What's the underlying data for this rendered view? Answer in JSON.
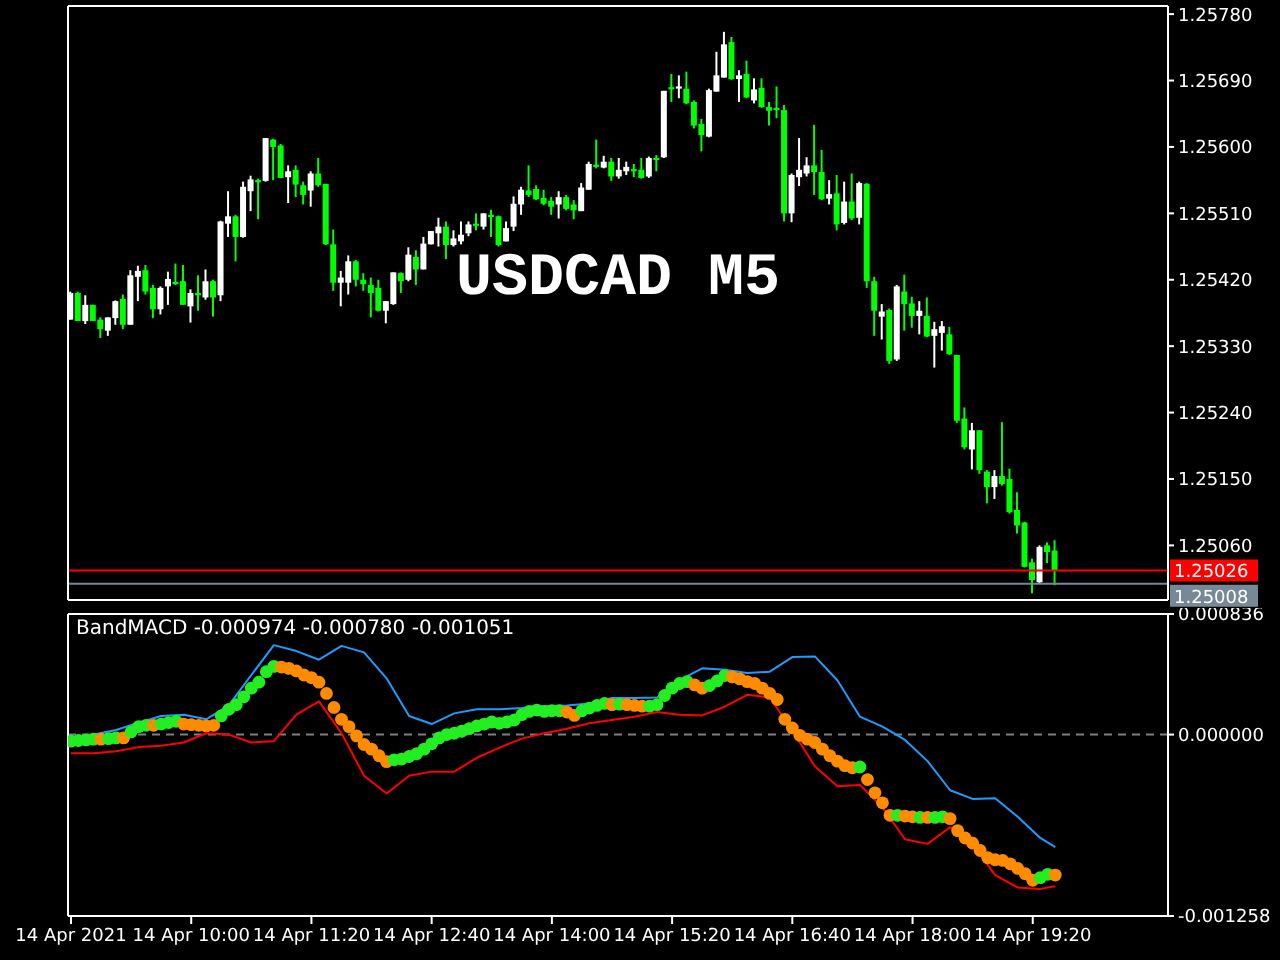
{
  "chart_data": [
    {
      "type": "candlestick",
      "title": "USDCAD M5",
      "tick_labels": "y",
      "xlim": [
        "2021-04-14T08:38",
        "2021-04-14T20:50"
      ],
      "ylim": [
        1.24986,
        1.25791
      ],
      "yticks": [
        {
          "value": 1.2506,
          "label": "1.25060"
        },
        {
          "value": 1.2515,
          "label": "1.25150"
        },
        {
          "value": 1.2524,
          "label": "1.25240"
        },
        {
          "value": 1.2533,
          "label": "1.25330"
        },
        {
          "value": 1.2542,
          "label": "1.25420"
        },
        {
          "value": 1.2551,
          "label": "1.25510"
        },
        {
          "value": 1.256,
          "label": "1.25600"
        },
        {
          "value": 1.2569,
          "label": "1.25690"
        },
        {
          "value": 1.2578,
          "label": "1.25780"
        }
      ],
      "ref_lines": [
        {
          "axis": "y",
          "value": 1.25026,
          "label": "1.25026",
          "color": "#ff0000"
        },
        {
          "axis": "y",
          "value": 1.25008,
          "label": "1.25008",
          "color": "#778899"
        }
      ],
      "x": [
        "2021-04-14T08:40",
        "2021-04-14T08:45",
        "2021-04-14T08:50",
        "2021-04-14T08:55",
        "2021-04-14T09:00",
        "2021-04-14T09:05",
        "2021-04-14T09:10",
        "2021-04-14T09:15",
        "2021-04-14T09:20",
        "2021-04-14T09:25",
        "2021-04-14T09:30",
        "2021-04-14T09:35",
        "2021-04-14T09:40",
        "2021-04-14T09:45",
        "2021-04-14T09:50",
        "2021-04-14T09:55",
        "2021-04-14T10:00",
        "2021-04-14T10:05",
        "2021-04-14T10:10",
        "2021-04-14T10:15",
        "2021-04-14T10:20",
        "2021-04-14T10:25",
        "2021-04-14T10:30",
        "2021-04-14T10:35",
        "2021-04-14T10:40",
        "2021-04-14T10:45",
        "2021-04-14T10:50",
        "2021-04-14T10:55",
        "2021-04-14T11:00",
        "2021-04-14T11:05",
        "2021-04-14T11:10",
        "2021-04-14T11:15",
        "2021-04-14T11:20",
        "2021-04-14T11:25",
        "2021-04-14T11:30",
        "2021-04-14T11:35",
        "2021-04-14T11:40",
        "2021-04-14T11:45",
        "2021-04-14T11:50",
        "2021-04-14T11:55",
        "2021-04-14T12:00",
        "2021-04-14T12:05",
        "2021-04-14T12:10",
        "2021-04-14T12:15",
        "2021-04-14T12:20",
        "2021-04-14T12:25",
        "2021-04-14T12:30",
        "2021-04-14T12:35",
        "2021-04-14T12:40",
        "2021-04-14T12:45",
        "2021-04-14T12:50",
        "2021-04-14T12:55",
        "2021-04-14T13:00",
        "2021-04-14T13:05",
        "2021-04-14T13:10",
        "2021-04-14T13:15",
        "2021-04-14T13:20",
        "2021-04-14T13:25",
        "2021-04-14T13:30",
        "2021-04-14T13:35",
        "2021-04-14T13:40",
        "2021-04-14T13:45",
        "2021-04-14T13:50",
        "2021-04-14T13:55",
        "2021-04-14T14:00",
        "2021-04-14T14:05",
        "2021-04-14T14:10",
        "2021-04-14T14:15",
        "2021-04-14T14:20",
        "2021-04-14T14:25",
        "2021-04-14T14:30",
        "2021-04-14T14:35",
        "2021-04-14T14:40",
        "2021-04-14T14:45",
        "2021-04-14T14:50",
        "2021-04-14T14:55",
        "2021-04-14T15:00",
        "2021-04-14T15:05",
        "2021-04-14T15:10",
        "2021-04-14T15:15",
        "2021-04-14T15:20",
        "2021-04-14T15:25",
        "2021-04-14T15:30",
        "2021-04-14T15:35",
        "2021-04-14T15:40",
        "2021-04-14T15:45",
        "2021-04-14T15:50",
        "2021-04-14T15:55",
        "2021-04-14T16:00",
        "2021-04-14T16:05",
        "2021-04-14T16:10",
        "2021-04-14T16:15",
        "2021-04-14T16:20",
        "2021-04-14T16:25",
        "2021-04-14T16:30",
        "2021-04-14T16:35",
        "2021-04-14T16:40",
        "2021-04-14T16:45",
        "2021-04-14T16:50",
        "2021-04-14T16:55",
        "2021-04-14T17:00",
        "2021-04-14T17:05",
        "2021-04-14T17:10",
        "2021-04-14T17:15",
        "2021-04-14T17:20",
        "2021-04-14T17:25",
        "2021-04-14T17:30",
        "2021-04-14T17:35",
        "2021-04-14T17:40",
        "2021-04-14T17:45",
        "2021-04-14T17:50",
        "2021-04-14T17:55",
        "2021-04-14T18:00",
        "2021-04-14T18:05",
        "2021-04-14T18:10",
        "2021-04-14T18:15",
        "2021-04-14T18:20",
        "2021-04-14T18:25",
        "2021-04-14T18:30",
        "2021-04-14T18:35",
        "2021-04-14T18:40",
        "2021-04-14T18:45",
        "2021-04-14T18:50",
        "2021-04-14T18:55",
        "2021-04-14T19:00",
        "2021-04-14T19:05",
        "2021-04-14T19:10",
        "2021-04-14T19:15",
        "2021-04-14T19:20",
        "2021-04-14T19:25",
        "2021-04-14T19:30",
        "2021-04-14T19:35"
      ],
      "ohlc": [
        [
          1.25366,
          1.25404,
          1.25366,
          1.25402
        ],
        [
          1.25402,
          1.25404,
          1.25364,
          1.25364
        ],
        [
          1.25364,
          1.25399,
          1.2536,
          1.25386
        ],
        [
          1.25386,
          1.25386,
          1.25364,
          1.25364
        ],
        [
          1.25366,
          1.25369,
          1.25341,
          1.25353
        ],
        [
          1.25351,
          1.25369,
          1.25344,
          1.25369
        ],
        [
          1.25368,
          1.25392,
          1.25359,
          1.25391
        ],
        [
          1.25394,
          1.254,
          1.25353,
          1.25359
        ],
        [
          1.25359,
          1.25433,
          1.25359,
          1.25426
        ],
        [
          1.25424,
          1.25439,
          1.25391,
          1.25432
        ],
        [
          1.25433,
          1.2544,
          1.254,
          1.25404
        ],
        [
          1.25409,
          1.25413,
          1.25368,
          1.2538
        ],
        [
          1.2538,
          1.25411,
          1.25373,
          1.25409
        ],
        [
          1.25411,
          1.25431,
          1.25386,
          1.25421
        ],
        [
          1.25417,
          1.25442,
          1.25413,
          1.25414
        ],
        [
          1.25418,
          1.2544,
          1.25386,
          1.25386
        ],
        [
          1.25384,
          1.25407,
          1.25362,
          1.25402
        ],
        [
          1.25402,
          1.25426,
          1.25378,
          1.25399
        ],
        [
          1.25396,
          1.25434,
          1.25393,
          1.25418
        ],
        [
          1.25418,
          1.2542,
          1.2537,
          1.25396
        ],
        [
          1.25399,
          1.255,
          1.25391,
          1.25499
        ],
        [
          1.25496,
          1.2554,
          1.25478,
          1.25506
        ],
        [
          1.25506,
          1.25508,
          1.25445,
          1.25478
        ],
        [
          1.25478,
          1.25553,
          1.25477,
          1.25546
        ],
        [
          1.2554,
          1.25561,
          1.25513,
          1.25556
        ],
        [
          1.25555,
          1.25557,
          1.25502,
          1.25552
        ],
        [
          1.25554,
          1.25612,
          1.25553,
          1.25612
        ],
        [
          1.2561,
          1.25611,
          1.25555,
          1.256
        ],
        [
          1.25602,
          1.25604,
          1.25558,
          1.25558
        ],
        [
          1.25559,
          1.25575,
          1.25524,
          1.25567
        ],
        [
          1.25569,
          1.25575,
          1.25532,
          1.25549
        ],
        [
          1.25548,
          1.25553,
          1.25522,
          1.25535
        ],
        [
          1.25541,
          1.25567,
          1.25519,
          1.25564
        ],
        [
          1.25564,
          1.25585,
          1.25546,
          1.25548
        ],
        [
          1.2555,
          1.2555,
          1.25467,
          1.25468
        ],
        [
          1.25468,
          1.25488,
          1.25405,
          1.25416
        ],
        [
          1.25416,
          1.25432,
          1.25384,
          1.25423
        ],
        [
          1.25416,
          1.25453,
          1.254,
          1.25445
        ],
        [
          1.25445,
          1.25447,
          1.25411,
          1.2542
        ],
        [
          1.2542,
          1.25429,
          1.25405,
          1.25414
        ],
        [
          1.25413,
          1.25423,
          1.25369,
          1.25402
        ],
        [
          1.25409,
          1.2542,
          1.25377,
          1.25378
        ],
        [
          1.25378,
          1.25391,
          1.25361,
          1.25391
        ],
        [
          1.25387,
          1.2543,
          1.25386,
          1.2543
        ],
        [
          1.25429,
          1.2543,
          1.25402,
          1.25418
        ],
        [
          1.2542,
          1.25464,
          1.25418,
          1.25454
        ],
        [
          1.25451,
          1.2546,
          1.25413,
          1.25434
        ],
        [
          1.25434,
          1.25478,
          1.25434,
          1.25469
        ],
        [
          1.25468,
          1.25486,
          1.25468,
          1.25486
        ],
        [
          1.25483,
          1.25504,
          1.25465,
          1.25492
        ],
        [
          1.25492,
          1.25499,
          1.25448,
          1.25467
        ],
        [
          1.25467,
          1.25487,
          1.25465,
          1.25476
        ],
        [
          1.25472,
          1.25499,
          1.25468,
          1.25481
        ],
        [
          1.25483,
          1.25499,
          1.25479,
          1.25495
        ],
        [
          1.25496,
          1.2551,
          1.25487,
          1.25493
        ],
        [
          1.25492,
          1.2551,
          1.25488,
          1.2551
        ],
        [
          1.25508,
          1.25515,
          1.25478,
          1.25505
        ],
        [
          1.25506,
          1.25507,
          1.25465,
          1.25467
        ],
        [
          1.25472,
          1.25499,
          1.25472,
          1.2549
        ],
        [
          1.25492,
          1.25533,
          1.25486,
          1.25523
        ],
        [
          1.25522,
          1.25546,
          1.25508,
          1.25542
        ],
        [
          1.25541,
          1.25575,
          1.25532,
          1.25535
        ],
        [
          1.25543,
          1.25548,
          1.25528,
          1.25529
        ],
        [
          1.25531,
          1.25542,
          1.25521,
          1.25523
        ],
        [
          1.25527,
          1.25532,
          1.25508,
          1.25519
        ],
        [
          1.25522,
          1.2554,
          1.25503,
          1.25532
        ],
        [
          1.25532,
          1.25535,
          1.25514,
          1.25516
        ],
        [
          1.25522,
          1.25528,
          1.25502,
          1.25514
        ],
        [
          1.25513,
          1.25551,
          1.25513,
          1.25545
        ],
        [
          1.25542,
          1.2558,
          1.25542,
          1.25577
        ],
        [
          1.25576,
          1.2561,
          1.25571,
          1.25573
        ],
        [
          1.25572,
          1.25588,
          1.25571,
          1.2558
        ],
        [
          1.2558,
          1.25585,
          1.25554,
          1.2556
        ],
        [
          1.2556,
          1.25585,
          1.25557,
          1.25569
        ],
        [
          1.25567,
          1.2558,
          1.25562,
          1.25573
        ],
        [
          1.2557,
          1.25577,
          1.25559,
          1.25567
        ],
        [
          1.25569,
          1.25585,
          1.25557,
          1.25558
        ],
        [
          1.2556,
          1.25587,
          1.25558,
          1.25585
        ],
        [
          1.25585,
          1.25589,
          1.25567,
          1.25583
        ],
        [
          1.25586,
          1.25676,
          1.25585,
          1.25676
        ],
        [
          1.25681,
          1.25699,
          1.25661,
          1.25678
        ],
        [
          1.25679,
          1.25697,
          1.25666,
          1.25682
        ],
        [
          1.25679,
          1.25702,
          1.25658,
          1.25659
        ],
        [
          1.25661,
          1.25663,
          1.25625,
          1.25629
        ],
        [
          1.25631,
          1.25638,
          1.25594,
          1.25616
        ],
        [
          1.25614,
          1.25679,
          1.25613,
          1.25677
        ],
        [
          1.25675,
          1.25729,
          1.25675,
          1.25697
        ],
        [
          1.25694,
          1.25756,
          1.25694,
          1.25739
        ],
        [
          1.25742,
          1.25749,
          1.25691,
          1.25692
        ],
        [
          1.25692,
          1.25704,
          1.25661,
          1.25697
        ],
        [
          1.25699,
          1.25717,
          1.25666,
          1.25667
        ],
        [
          1.25663,
          1.25693,
          1.25659,
          1.25678
        ],
        [
          1.2568,
          1.25693,
          1.25653,
          1.25654
        ],
        [
          1.25654,
          1.25661,
          1.25629,
          1.25649
        ],
        [
          1.25653,
          1.25682,
          1.25639,
          1.2565
        ],
        [
          1.2565,
          1.25657,
          1.25499,
          1.2551
        ],
        [
          1.2551,
          1.25564,
          1.25498,
          1.25562
        ],
        [
          1.25559,
          1.25612,
          1.25547,
          1.25569
        ],
        [
          1.25564,
          1.25586,
          1.2556,
          1.25575
        ],
        [
          1.25575,
          1.2563,
          1.25535,
          1.25566
        ],
        [
          1.25566,
          1.25596,
          1.25528,
          1.25529
        ],
        [
          1.2553,
          1.25555,
          1.25522,
          1.25536
        ],
        [
          1.25537,
          1.25562,
          1.25487,
          1.25495
        ],
        [
          1.25497,
          1.25553,
          1.25495,
          1.25526
        ],
        [
          1.25526,
          1.25564,
          1.25501,
          1.25503
        ],
        [
          1.25504,
          1.25553,
          1.25495,
          1.25551
        ],
        [
          1.2555,
          1.25551,
          1.25409,
          1.25418
        ],
        [
          1.25418,
          1.25424,
          1.25344,
          1.25378
        ],
        [
          1.2537,
          1.25387,
          1.25339,
          1.25377
        ],
        [
          1.25379,
          1.25381,
          1.25306,
          1.2531
        ],
        [
          1.25312,
          1.25413,
          1.2531,
          1.25411
        ],
        [
          1.25404,
          1.25427,
          1.25351,
          1.25387
        ],
        [
          1.25388,
          1.25397,
          1.25355,
          1.25371
        ],
        [
          1.25371,
          1.25391,
          1.25346,
          1.25378
        ],
        [
          1.25371,
          1.25396,
          1.25342,
          1.25343
        ],
        [
          1.25344,
          1.25363,
          1.25301,
          1.25353
        ],
        [
          1.25348,
          1.25364,
          1.25324,
          1.25357
        ],
        [
          1.25346,
          1.25356,
          1.25318,
          1.25319
        ],
        [
          1.25318,
          1.25318,
          1.25226,
          1.25229
        ],
        [
          1.25232,
          1.25247,
          1.2519,
          1.25193
        ],
        [
          1.2519,
          1.25226,
          1.25163,
          1.25216
        ],
        [
          1.25216,
          1.25216,
          1.25157,
          1.25162
        ],
        [
          1.2516,
          1.25162,
          1.25117,
          1.25139
        ],
        [
          1.25139,
          1.25162,
          1.25123,
          1.25154
        ],
        [
          1.25154,
          1.25227,
          1.25141,
          1.25143
        ],
        [
          1.2515,
          1.25164,
          1.25103,
          1.25105
        ],
        [
          1.25108,
          1.25132,
          1.25076,
          1.25087
        ],
        [
          1.25091,
          1.25092,
          1.2503,
          1.25031
        ],
        [
          1.25037,
          1.25042,
          1.24995,
          1.25013
        ],
        [
          1.2501,
          1.2506,
          1.25009,
          1.25058
        ],
        [
          1.2506,
          1.25064,
          1.25036,
          1.25051
        ],
        [
          1.25053,
          1.25067,
          1.25006,
          1.25026
        ]
      ],
      "colors": [
        "#ffffff",
        "#00ff00",
        "#ffffff",
        "#00ff00",
        "#00ff00",
        "#ffffff",
        "#ffffff",
        "#00ff00",
        "#ffffff",
        "#ffffff",
        "#00ff00",
        "#00ff00",
        "#ffffff",
        "#ffffff",
        "#00ff00",
        "#00ff00",
        "#ffffff",
        "#00ff00",
        "#ffffff",
        "#00ff00",
        "#ffffff",
        "#ffffff",
        "#00ff00",
        "#ffffff",
        "#ffffff",
        "#00ff00",
        "#ffffff",
        "#00ff00",
        "#00ff00",
        "#ffffff",
        "#00ff00",
        "#00ff00",
        "#ffffff",
        "#00ff00",
        "#00ff00",
        "#00ff00",
        "#ffffff",
        "#ffffff",
        "#00ff00",
        "#00ff00",
        "#00ff00",
        "#00ff00",
        "#ffffff",
        "#ffffff",
        "#00ff00",
        "#ffffff",
        "#00ff00",
        "#ffffff",
        "#ffffff",
        "#ffffff",
        "#00ff00",
        "#ffffff",
        "#ffffff",
        "#ffffff",
        "#00ff00",
        "#ffffff",
        "#00ff00",
        "#00ff00",
        "#ffffff",
        "#ffffff",
        "#ffffff",
        "#00ff00",
        "#00ff00",
        "#00ff00",
        "#00ff00",
        "#ffffff",
        "#00ff00",
        "#00ff00",
        "#ffffff",
        "#ffffff",
        "#00ff00",
        "#ffffff",
        "#00ff00",
        "#ffffff",
        "#ffffff",
        "#00ff00",
        "#00ff00",
        "#ffffff",
        "#00ff00",
        "#ffffff",
        "#00ff00",
        "#ffffff",
        "#00ff00",
        "#00ff00",
        "#00ff00",
        "#ffffff",
        "#ffffff",
        "#ffffff",
        "#00ff00",
        "#ffffff",
        "#00ff00",
        "#ffffff",
        "#00ff00",
        "#00ff00",
        "#00ff00",
        "#00ff00",
        "#ffffff",
        "#ffffff",
        "#ffffff",
        "#00ff00",
        "#00ff00",
        "#ffffff",
        "#00ff00",
        "#ffffff",
        "#00ff00",
        "#ffffff",
        "#00ff00",
        "#00ff00",
        "#ffffff",
        "#00ff00",
        "#ffffff",
        "#00ff00",
        "#00ff00",
        "#ffffff",
        "#00ff00",
        "#ffffff",
        "#ffffff",
        "#00ff00",
        "#00ff00",
        "#00ff00",
        "#ffffff",
        "#00ff00",
        "#00ff00",
        "#ffffff",
        "#00ff00",
        "#00ff00",
        "#00ff00",
        "#00ff00",
        "#00ff00",
        "#ffffff",
        "#00ff00",
        "#00ff00"
      ]
    },
    {
      "type": "line",
      "title": "BandMACD -0.000974 -0.000780 -0.001051",
      "xlim": [
        "2021-04-14T08:38",
        "2021-04-14T20:50"
      ],
      "xticks": [
        {
          "value": "2021-04-14T08:40",
          "label": "14 Apr 2021"
        },
        {
          "value": "2021-04-14T10:00",
          "label": "14 Apr 10:00"
        },
        {
          "value": "2021-04-14T11:20",
          "label": "14 Apr 11:20"
        },
        {
          "value": "2021-04-14T12:40",
          "label": "14 Apr 12:40"
        },
        {
          "value": "2021-04-14T14:00",
          "label": "14 Apr 14:00"
        },
        {
          "value": "2021-04-14T15:20",
          "label": "14 Apr 15:20"
        },
        {
          "value": "2021-04-14T16:40",
          "label": "14 Apr 16:40"
        },
        {
          "value": "2021-04-14T18:00",
          "label": "14 Apr 18:00"
        },
        {
          "value": "2021-04-14T19:20",
          "label": "14 Apr 19:20"
        }
      ],
      "ylim": [
        -0.001258,
        0.000836
      ],
      "yticks": [
        {
          "value": -0.001258,
          "label": "-0.001258"
        },
        {
          "value": 0,
          "label": "0.000000"
        },
        {
          "value": 0.000836,
          "label": "0.000836"
        }
      ],
      "ref_lines": [
        {
          "axis": "y",
          "value": 0,
          "color": "#808080",
          "line_style": "dashed"
        }
      ],
      "x": [
        "2021-04-14T08:40",
        "2021-04-14T08:45",
        "2021-04-14T08:50",
        "2021-04-14T08:55",
        "2021-04-14T09:00",
        "2021-04-14T09:05",
        "2021-04-14T09:10",
        "2021-04-14T09:15",
        "2021-04-14T09:20",
        "2021-04-14T09:25",
        "2021-04-14T09:30",
        "2021-04-14T09:35",
        "2021-04-14T09:40",
        "2021-04-14T09:45",
        "2021-04-14T09:50",
        "2021-04-14T09:55",
        "2021-04-14T10:00",
        "2021-04-14T10:05",
        "2021-04-14T10:10",
        "2021-04-14T10:15",
        "2021-04-14T10:20",
        "2021-04-14T10:25",
        "2021-04-14T10:30",
        "2021-04-14T10:35",
        "2021-04-14T10:40",
        "2021-04-14T10:45",
        "2021-04-14T10:50",
        "2021-04-14T10:55",
        "2021-04-14T11:00",
        "2021-04-14T11:05",
        "2021-04-14T11:10",
        "2021-04-14T11:15",
        "2021-04-14T11:20",
        "2021-04-14T11:25",
        "2021-04-14T11:30",
        "2021-04-14T11:35",
        "2021-04-14T11:40",
        "2021-04-14T11:45",
        "2021-04-14T11:50",
        "2021-04-14T11:55",
        "2021-04-14T12:00",
        "2021-04-14T12:05",
        "2021-04-14T12:10",
        "2021-04-14T12:15",
        "2021-04-14T12:20",
        "2021-04-14T12:25",
        "2021-04-14T12:30",
        "2021-04-14T12:35",
        "2021-04-14T12:40",
        "2021-04-14T12:45",
        "2021-04-14T12:50",
        "2021-04-14T12:55",
        "2021-04-14T13:00",
        "2021-04-14T13:05",
        "2021-04-14T13:10",
        "2021-04-14T13:15",
        "2021-04-14T13:20",
        "2021-04-14T13:25",
        "2021-04-14T13:30",
        "2021-04-14T13:35",
        "2021-04-14T13:40",
        "2021-04-14T13:45",
        "2021-04-14T13:50",
        "2021-04-14T13:55",
        "2021-04-14T14:00",
        "2021-04-14T14:05",
        "2021-04-14T14:10",
        "2021-04-14T14:15",
        "2021-04-14T14:20",
        "2021-04-14T14:25",
        "2021-04-14T14:30",
        "2021-04-14T14:35",
        "2021-04-14T14:40",
        "2021-04-14T14:45",
        "2021-04-14T14:50",
        "2021-04-14T14:55",
        "2021-04-14T15:00",
        "2021-04-14T15:05",
        "2021-04-14T15:10",
        "2021-04-14T15:15",
        "2021-04-14T15:20",
        "2021-04-14T15:25",
        "2021-04-14T15:30",
        "2021-04-14T15:35",
        "2021-04-14T15:40",
        "2021-04-14T15:45",
        "2021-04-14T15:50",
        "2021-04-14T15:55",
        "2021-04-14T16:00",
        "2021-04-14T16:05",
        "2021-04-14T16:10",
        "2021-04-14T16:15",
        "2021-04-14T16:20",
        "2021-04-14T16:25",
        "2021-04-14T16:30",
        "2021-04-14T16:35",
        "2021-04-14T16:40",
        "2021-04-14T16:45",
        "2021-04-14T16:50",
        "2021-04-14T16:55",
        "2021-04-14T17:00",
        "2021-04-14T17:05",
        "2021-04-14T17:10",
        "2021-04-14T17:15",
        "2021-04-14T17:20",
        "2021-04-14T17:25",
        "2021-04-14T17:30",
        "2021-04-14T17:35",
        "2021-04-14T17:40",
        "2021-04-14T17:45",
        "2021-04-14T17:50",
        "2021-04-14T17:55",
        "2021-04-14T18:00",
        "2021-04-14T18:05",
        "2021-04-14T18:10",
        "2021-04-14T18:15",
        "2021-04-14T18:20",
        "2021-04-14T18:25",
        "2021-04-14T18:30",
        "2021-04-14T18:35",
        "2021-04-14T18:40",
        "2021-04-14T18:45",
        "2021-04-14T18:50",
        "2021-04-14T18:55",
        "2021-04-14T19:00",
        "2021-04-14T19:05",
        "2021-04-14T19:10",
        "2021-04-14T19:15",
        "2021-04-14T19:20",
        "2021-04-14T19:25",
        "2021-04-14T19:30",
        "2021-04-14T19:35"
      ],
      "series": [
        {
          "type": "scatter",
          "marker": "circle",
          "values": [
            -4.6e-05,
            -4.1e-05,
            -3.7e-05,
            -3.2e-05,
            -3.2e-05,
            -2.8e-05,
            -2.3e-05,
            -2.3e-05,
            1.8e-05,
            5.5e-05,
            6.4e-05,
            6.4e-05,
            7.3e-05,
            8.3e-05,
            9.2e-05,
            7.3e-05,
            6.9e-05,
            6.4e-05,
            6e-05,
            6.4e-05,
            0.000129,
            0.000175,
            0.000207,
            0.000262,
            0.000322,
            0.000363,
            0.000436,
            0.000473,
            0.000468,
            0.000459,
            0.000441,
            0.000413,
            0.000395,
            0.000363,
            0.000285,
            0.000188,
            0.000106,
            5.5e-05,
            -9e-06,
            -6.9e-05,
            -0.000101,
            -0.000147,
            -0.000188,
            -0.000175,
            -0.00017,
            -0.000152,
            -0.000133,
            -0.000101,
            -6.4e-05,
            -2.3e-05,
            0.0,
            9e-06,
            2.3e-05,
            4.1e-05,
            6e-05,
            7.3e-05,
            8.7e-05,
            7.8e-05,
            8.7e-05,
            0.000101,
            0.000138,
            0.000161,
            0.00017,
            0.000161,
            0.000165,
            0.000165,
            0.000156,
            0.000133,
            0.000165,
            0.000184,
            0.000202,
            0.000216,
            0.000207,
            0.000211,
            0.000207,
            0.000202,
            0.000197,
            0.000197,
            0.000207,
            0.000271,
            0.000322,
            0.000354,
            0.000367,
            0.000344,
            0.000322,
            0.00034,
            0.000372,
            0.000409,
            0.0004,
            0.000386,
            0.000367,
            0.000354,
            0.000322,
            0.000285,
            0.000243,
            0.000106,
            4.6e-05,
            -5e-06,
            -3.2e-05,
            -5.5e-05,
            -0.000101,
            -0.000147,
            -0.000184,
            -0.000216,
            -0.00023,
            -0.000225,
            -0.000312,
            -0.000404,
            -0.000473,
            -0.00056,
            -0.00056,
            -0.000565,
            -0.00057,
            -0.000574,
            -0.000574,
            -0.000574,
            -0.00057,
            -0.000583,
            -0.000666,
            -0.000717,
            -0.000753,
            -0.000804,
            -0.000854,
            -0.000868,
            -0.000873,
            -0.000896,
            -0.000928,
            -0.000965,
            -0.00101,
            -0.000992,
            -0.000969,
            -0.000974
          ],
          "colors": [
            "#22ee22",
            "#22ee22",
            "#22ee22",
            "#22ee22",
            "#ff8c00",
            "#22ee22",
            "#22ee22",
            "#ff8c00",
            "#22ee22",
            "#22ee22",
            "#22ee22",
            "#ff8c00",
            "#22ee22",
            "#22ee22",
            "#22ee22",
            "#ff8c00",
            "#ff8c00",
            "#ff8c00",
            "#ff8c00",
            "#ff8c00",
            "#22ee22",
            "#22ee22",
            "#22ee22",
            "#22ee22",
            "#22ee22",
            "#22ee22",
            "#22ee22",
            "#22ee22",
            "#ff8c00",
            "#ff8c00",
            "#ff8c00",
            "#ff8c00",
            "#ff8c00",
            "#ff8c00",
            "#ff8c00",
            "#ff8c00",
            "#ff8c00",
            "#ff8c00",
            "#ff8c00",
            "#ff8c00",
            "#ff8c00",
            "#ff8c00",
            "#ff8c00",
            "#22ee22",
            "#22ee22",
            "#22ee22",
            "#22ee22",
            "#22ee22",
            "#22ee22",
            "#22ee22",
            "#22ee22",
            "#22ee22",
            "#22ee22",
            "#22ee22",
            "#22ee22",
            "#22ee22",
            "#22ee22",
            "#22ee22",
            "#22ee22",
            "#22ee22",
            "#22ee22",
            "#22ee22",
            "#22ee22",
            "#22ee22",
            "#22ee22",
            "#22ee22",
            "#ff8c00",
            "#ff8c00",
            "#22ee22",
            "#22ee22",
            "#22ee22",
            "#22ee22",
            "#ff8c00",
            "#22ee22",
            "#ff8c00",
            "#ff8c00",
            "#ff8c00",
            "#22ee22",
            "#22ee22",
            "#22ee22",
            "#22ee22",
            "#22ee22",
            "#22ee22",
            "#ff8c00",
            "#ff8c00",
            "#22ee22",
            "#22ee22",
            "#22ee22",
            "#ff8c00",
            "#ff8c00",
            "#ff8c00",
            "#ff8c00",
            "#ff8c00",
            "#ff8c00",
            "#ff8c00",
            "#ff8c00",
            "#ff8c00",
            "#ff8c00",
            "#ff8c00",
            "#ff8c00",
            "#ff8c00",
            "#ff8c00",
            "#ff8c00",
            "#ff8c00",
            "#ff8c00",
            "#22ee22",
            "#ff8c00",
            "#ff8c00",
            "#ff8c00",
            "#ff8c00",
            "#22ee22",
            "#ff8c00",
            "#ff8c00",
            "#22ee22",
            "#ff8c00",
            "#22ee22",
            "#22ee22",
            "#ff8c00",
            "#ff8c00",
            "#ff8c00",
            "#ff8c00",
            "#ff8c00",
            "#ff8c00",
            "#ff8c00",
            "#ff8c00",
            "#ff8c00",
            "#ff8c00",
            "#ff8c00",
            "#ff8c00",
            "#22ee22",
            "#22ee22",
            "#ff8c00"
          ]
        },
        {
          "type": "line",
          "color": "#1e9bff",
          "x": [
            "2021-04-14T08:40",
            "2021-04-14T08:55",
            "2021-04-14T09:10",
            "2021-04-14T09:25",
            "2021-04-14T09:40",
            "2021-04-14T09:55",
            "2021-04-14T10:10",
            "2021-04-14T10:25",
            "2021-04-14T10:40",
            "2021-04-14T10:55",
            "2021-04-14T11:10",
            "2021-04-14T11:25",
            "2021-04-14T11:40",
            "2021-04-14T11:55",
            "2021-04-14T12:10",
            "2021-04-14T12:25",
            "2021-04-14T12:40",
            "2021-04-14T12:55",
            "2021-04-14T13:10",
            "2021-04-14T13:25",
            "2021-04-14T13:40",
            "2021-04-14T13:55",
            "2021-04-14T14:10",
            "2021-04-14T14:25",
            "2021-04-14T14:40",
            "2021-04-14T14:55",
            "2021-04-14T15:10",
            "2021-04-14T15:25",
            "2021-04-14T15:40",
            "2021-04-14T15:55",
            "2021-04-14T16:10",
            "2021-04-14T16:25",
            "2021-04-14T16:40",
            "2021-04-14T16:55",
            "2021-04-14T17:10",
            "2021-04-14T17:25",
            "2021-04-14T17:40",
            "2021-04-14T17:55",
            "2021-04-14T18:10",
            "2021-04-14T18:25",
            "2021-04-14T18:40",
            "2021-04-14T18:55",
            "2021-04-14T19:10",
            "2021-04-14T19:25",
            "2021-04-14T19:35"
          ],
          "values": [
            -2.3e-05,
            0.0,
            3.2e-05,
            8.3e-05,
            0.000129,
            0.000138,
            0.000106,
            0.000202,
            0.000413,
            0.00062,
            0.000579,
            0.000519,
            0.000615,
            0.00057,
            0.00039,
            0.000129,
            7.3e-05,
            0.000147,
            0.000175,
            0.000175,
            0.000184,
            0.000197,
            0.000202,
            0.000216,
            0.000253,
            0.000253,
            0.000257,
            0.000377,
            0.000459,
            0.00045,
            0.000427,
            0.000436,
            0.000537,
            0.000542,
            0.000377,
            0.000124,
            5.5e-05,
            -3.7e-05,
            -0.000184,
            -0.000386,
            -0.000446,
            -0.000441,
            -0.00057,
            -0.000717,
            -0.00078
          ]
        },
        {
          "type": "line",
          "color": "#ff0000",
          "x": [
            "2021-04-14T08:40",
            "2021-04-14T08:55",
            "2021-04-14T09:10",
            "2021-04-14T09:25",
            "2021-04-14T09:40",
            "2021-04-14T09:55",
            "2021-04-14T10:10",
            "2021-04-14T10:25",
            "2021-04-14T10:40",
            "2021-04-14T10:55",
            "2021-04-14T11:10",
            "2021-04-14T11:25",
            "2021-04-14T11:40",
            "2021-04-14T11:55",
            "2021-04-14T12:10",
            "2021-04-14T12:25",
            "2021-04-14T12:40",
            "2021-04-14T12:55",
            "2021-04-14T13:10",
            "2021-04-14T13:25",
            "2021-04-14T13:40",
            "2021-04-14T13:55",
            "2021-04-14T14:10",
            "2021-04-14T14:25",
            "2021-04-14T14:40",
            "2021-04-14T14:55",
            "2021-04-14T15:10",
            "2021-04-14T15:25",
            "2021-04-14T15:40",
            "2021-04-14T15:55",
            "2021-04-14T16:10",
            "2021-04-14T16:25",
            "2021-04-14T16:40",
            "2021-04-14T16:55",
            "2021-04-14T17:10",
            "2021-04-14T17:25",
            "2021-04-14T17:40",
            "2021-04-14T17:55",
            "2021-04-14T18:10",
            "2021-04-14T18:25",
            "2021-04-14T18:40",
            "2021-04-14T18:55",
            "2021-04-14T19:10",
            "2021-04-14T19:25",
            "2021-04-14T19:35"
          ],
          "values": [
            -0.000129,
            -0.000129,
            -0.000115,
            -8.7e-05,
            -7.8e-05,
            -5.5e-05,
            9e-06,
            0.0,
            -5.5e-05,
            -4.6e-05,
            0.000138,
            0.00023,
            9e-06,
            -0.000285,
            -0.000409,
            -0.000285,
            -0.000257,
            -0.000257,
            -0.000161,
            -9.2e-05,
            -2.8e-05,
            9e-06,
            4.1e-05,
            7.8e-05,
            0.000101,
            0.000124,
            0.000156,
            0.000138,
            0.000133,
            0.000193,
            0.000276,
            0.000257,
            2.8e-05,
            -0.00022,
            -0.000358,
            -0.000349,
            -0.000505,
            -0.000726,
            -0.000758,
            -0.000643,
            -0.000758,
            -0.000974,
            -0.001061,
            -0.00107,
            -0.001051
          ]
        }
      ]
    }
  ]
}
